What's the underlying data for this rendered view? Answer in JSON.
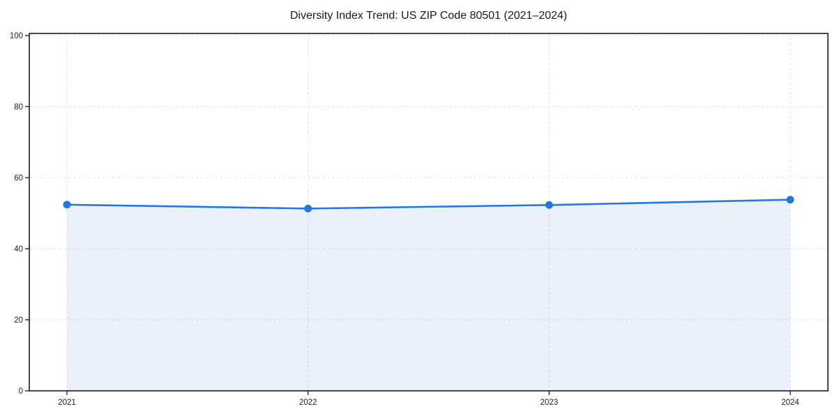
{
  "chart_data": {
    "type": "line",
    "title": "Diversity Index Trend: US ZIP Code 80501 (2021–2024)",
    "categories": [
      "2021",
      "2022",
      "2023",
      "2024"
    ],
    "series": [
      {
        "name": "Diversity Index",
        "values": [
          52.4,
          51.3,
          52.3,
          53.8
        ]
      }
    ],
    "xlabel": "",
    "ylabel": "",
    "ylim": [
      0,
      100
    ],
    "yticks": [
      0,
      20,
      40,
      60,
      80,
      100
    ],
    "grid": true,
    "area_fill": true,
    "legend": "none",
    "markers": true,
    "colors": {
      "line": "#2575e2",
      "marker": "#2575e2",
      "area": "rgba(37,117,226,0.10)",
      "gridline": "#e3e3e3",
      "frame": "#1a1a1a",
      "tick_text": "#222222",
      "background": "#ffffff"
    }
  }
}
